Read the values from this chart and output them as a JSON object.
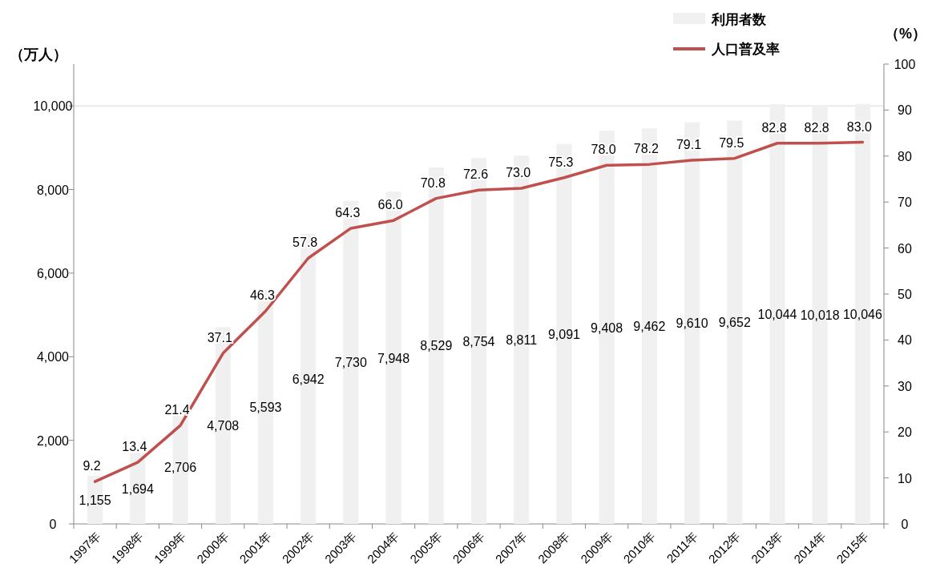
{
  "chart_data": {
    "type": "bar",
    "categories": [
      "1997年",
      "1998年",
      "1999年",
      "2000年",
      "2001年",
      "2002年",
      "2003年",
      "2004年",
      "2005年",
      "2006年",
      "2007年",
      "2008年",
      "2009年",
      "2010年",
      "2011年",
      "2012年",
      "2013年",
      "2014年",
      "2015年"
    ],
    "series": [
      {
        "name": "利用者数",
        "color": "#f0f0f0",
        "values": [
          1155,
          1694,
          2706,
          4708,
          5593,
          6942,
          7730,
          7948,
          8529,
          8754,
          8811,
          9091,
          9408,
          9462,
          9610,
          9652,
          10044,
          10018,
          10046
        ],
        "value_labels": [
          "1,155",
          "1,694",
          "2,706",
          "4,708",
          "5,593",
          "6,942",
          "7,730",
          "7,948",
          "8,529",
          "8,754",
          "8,811",
          "9,091",
          "9,408",
          "9,462",
          "9,610",
          "9,652",
          "10,044",
          "10,018",
          "10,046"
        ]
      },
      {
        "name": "人口普及率",
        "type": "line",
        "axis": "y2",
        "color": "#c0504d",
        "values": [
          9.2,
          13.4,
          21.4,
          37.1,
          46.3,
          57.8,
          64.3,
          66.0,
          70.8,
          72.6,
          73.0,
          75.3,
          78.0,
          78.2,
          79.1,
          79.5,
          82.8,
          82.8,
          83.0
        ],
        "value_labels": [
          "9.2",
          "13.4",
          "21.4",
          "37.1",
          "46.3",
          "57.8",
          "64.3",
          "66.0",
          "70.8",
          "72.6",
          "73.0",
          "75.3",
          "78.0",
          "78.2",
          "79.1",
          "79.5",
          "82.8",
          "82.8",
          "83.0"
        ]
      }
    ],
    "ylabel": "（万人）",
    "y2label": "（%）",
    "ylim": [
      0,
      11000
    ],
    "yticks": [
      0,
      {
        "value": 2000,
        "label": "2,000"
      },
      {
        "value": 4000,
        "label": "4,000"
      },
      {
        "value": 6000,
        "label": "6,000"
      },
      {
        "value": 8000,
        "label": "8,000"
      },
      {
        "value": 10000,
        "label": "10,000"
      }
    ],
    "y2lim": [
      0,
      100
    ],
    "y2ticks": [
      0,
      10,
      20,
      30,
      40,
      50,
      60,
      70,
      80,
      90,
      100
    ],
    "ref_lines": [
      {
        "axis": "y",
        "value": 10000,
        "color": "#d9d9d9"
      }
    ],
    "legend": "top right",
    "marker": "none",
    "line_style": "solid"
  }
}
